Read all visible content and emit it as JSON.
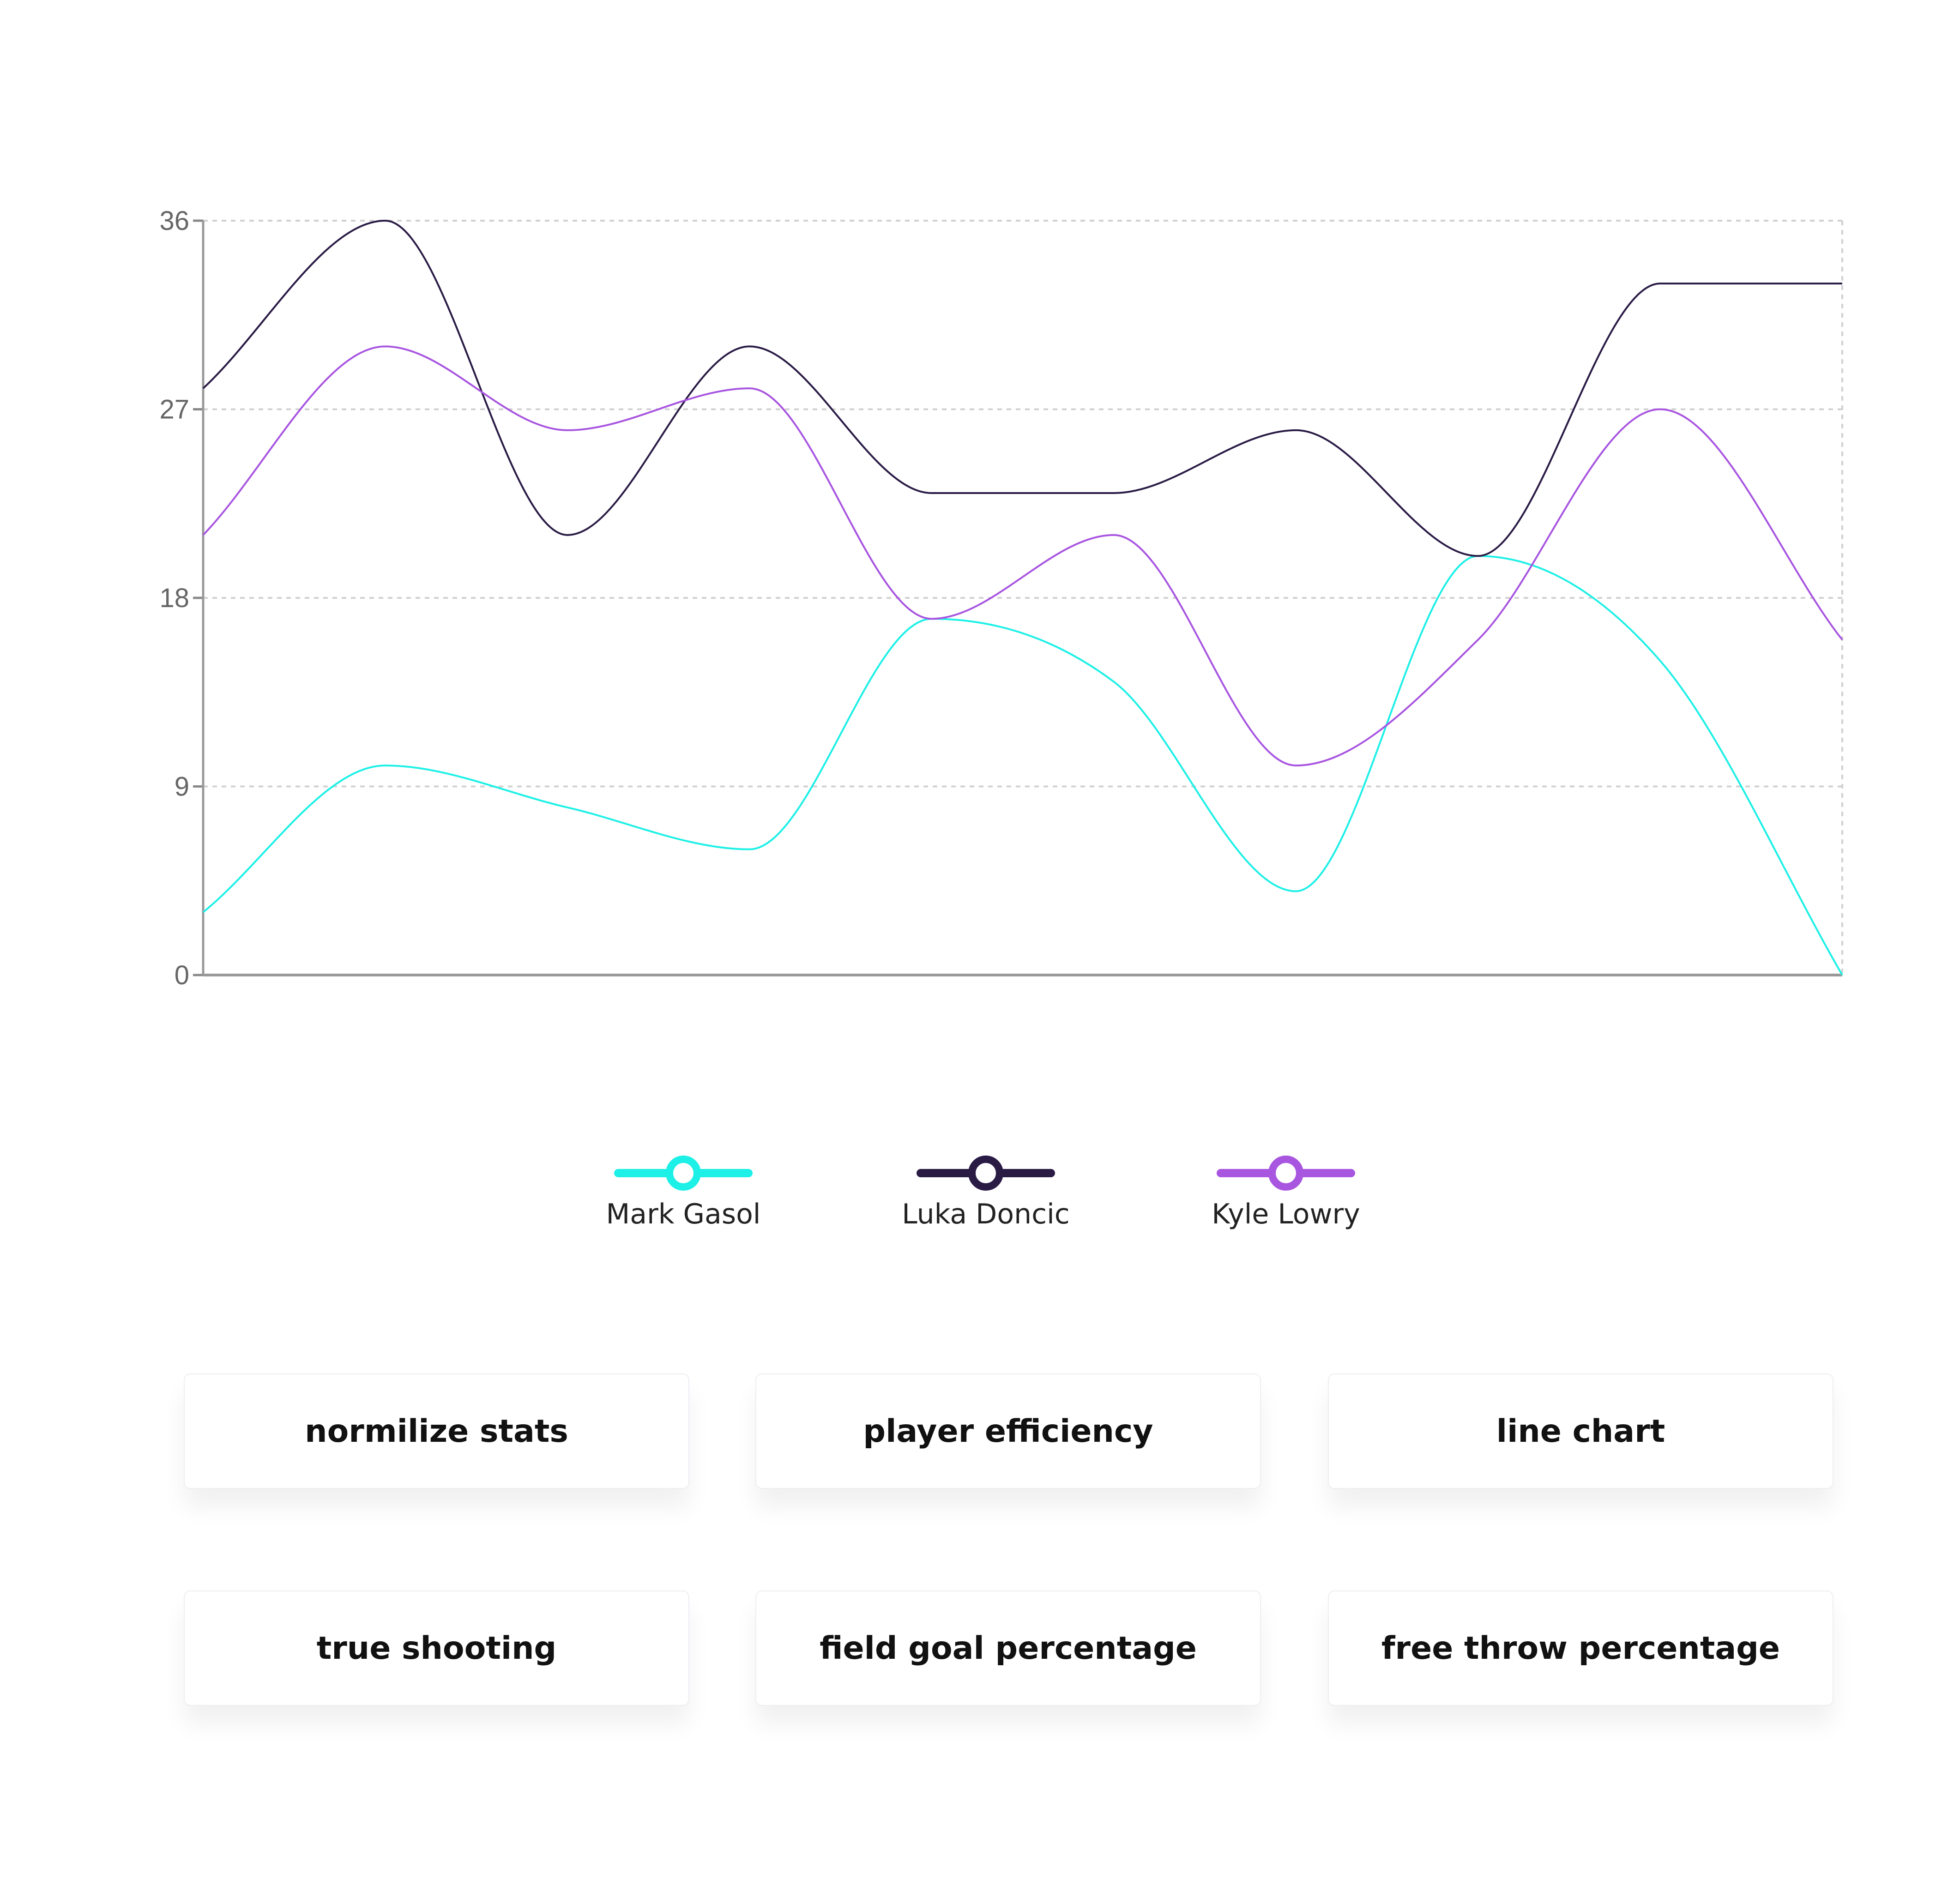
{
  "chart_data": {
    "type": "line",
    "x": [
      0,
      1,
      2,
      3,
      4,
      5,
      6,
      7,
      8,
      9
    ],
    "yticks": [
      0,
      9,
      18,
      27,
      36
    ],
    "ylim": [
      0,
      36
    ],
    "grid": true,
    "legend_position": "bottom",
    "series": [
      {
        "name": "Mark Gasol",
        "color": "#1DF0E6",
        "values": [
          3,
          10,
          8,
          6,
          17,
          14,
          4,
          20,
          15,
          0
        ]
      },
      {
        "name": "Luka Doncic",
        "color": "#2A1B45",
        "values": [
          28,
          36,
          21,
          30,
          23,
          23,
          26,
          20,
          33,
          33
        ]
      },
      {
        "name": "Kyle Lowry",
        "color": "#A855E0",
        "values": [
          21,
          30,
          26,
          28,
          17,
          21,
          10,
          16,
          27,
          16
        ]
      }
    ]
  },
  "buttons": {
    "normalize": "normilize stats",
    "player_efficiency": "player efficiency",
    "line_chart": "line chart",
    "true_shooting": "true shooting",
    "field_goal": "field goal percentage",
    "free_throw": "free throw percentage"
  }
}
